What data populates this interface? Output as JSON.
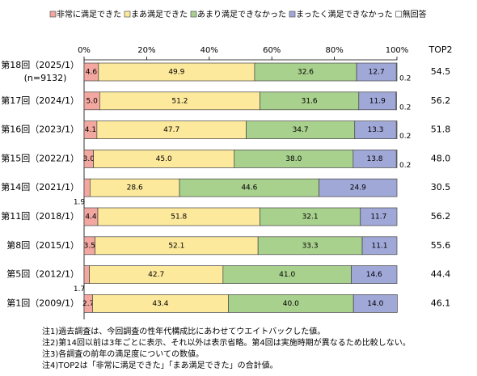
{
  "chart_data": {
    "type": "stacked-bar-horizontal",
    "categories": [
      "第18回（2025/1）",
      "第17回（2024/1）",
      "第16回（2023/1）",
      "第15回（2022/1）",
      "第14回（2021/1）",
      "第11回（2018/1）",
      "第8回（2015/1）",
      "第5回（2012/1）",
      "第1回（2009/1）"
    ],
    "sample_size": "(n=9132)",
    "series": [
      {
        "name": "非常に満足できた",
        "color": "#f2a7a0",
        "values": [
          4.6,
          5.0,
          4.1,
          3.0,
          1.9,
          4.4,
          3.5,
          1.7,
          2.7
        ],
        "value_labels": [
          "4.6",
          "5.0",
          "4.1",
          "3.0",
          "1.9",
          "4.4",
          "3.5",
          "1.7",
          "2.7"
        ]
      },
      {
        "name": "まあ満足できた",
        "color": "#fde99c",
        "values": [
          49.9,
          51.2,
          47.7,
          45.0,
          28.6,
          51.8,
          52.1,
          42.7,
          43.4
        ],
        "value_labels": [
          "49.9",
          "51.2",
          "47.7",
          "45.0",
          "28.6",
          "51.8",
          "52.1",
          "42.7",
          "43.4"
        ]
      },
      {
        "name": "あまり満足できなかった",
        "color": "#a9d18e",
        "values": [
          32.6,
          31.6,
          34.7,
          38.0,
          44.6,
          32.1,
          33.3,
          41.0,
          40.0
        ],
        "value_labels": [
          "32.6",
          "31.6",
          "34.7",
          "38.0",
          "44.6",
          "32.1",
          "33.3",
          "41.0",
          "40.0"
        ]
      },
      {
        "name": "まったく満足できなかった",
        "color": "#a0a8d8",
        "values": [
          12.7,
          11.9,
          13.3,
          13.8,
          24.9,
          11.7,
          11.1,
          14.6,
          14.0
        ],
        "value_labels": [
          "12.7",
          "11.9",
          "13.3",
          "13.8",
          "24.9",
          "11.7",
          "11.1",
          "14.6",
          "14.0"
        ]
      },
      {
        "name": "無回答",
        "color": "#ffffff",
        "values": [
          0.2,
          0.2,
          0.2,
          0.2,
          null,
          null,
          null,
          null,
          null
        ],
        "value_labels": [
          "0.2",
          "0.2",
          "0.2",
          "0.2",
          null,
          null,
          null,
          null,
          null
        ]
      }
    ],
    "top2": {
      "name": "TOP2",
      "values": [
        54.5,
        56.2,
        51.8,
        48.0,
        30.5,
        56.2,
        55.6,
        44.4,
        46.1
      ],
      "value_labels": [
        "54.5",
        "56.2",
        "51.8",
        "48.0",
        "30.5",
        "56.2",
        "55.6",
        "44.4",
        "46.1"
      ]
    },
    "xlim": [
      0,
      100
    ],
    "xticks": [
      {
        "value": 0,
        "label": "0%"
      },
      {
        "value": 20,
        "label": "20%"
      },
      {
        "value": 40,
        "label": "40%"
      },
      {
        "value": 60,
        "label": "60%"
      },
      {
        "value": 80,
        "label": "80%"
      },
      {
        "value": 100,
        "label": "100%"
      }
    ],
    "notes": [
      "注1)過去調査は、今回調査の性年代構成比にあわせてウエイトバックした値。",
      "注2)第14回以前は3年ごとに表示、それ以外は表示省略。第4回は実施時期が異なるため比較しない。",
      "注3)各調査の前年の満足度についての数値。",
      "注4)TOP2は「非常に満足できた」「まあ満足できた」の合計値。"
    ]
  }
}
